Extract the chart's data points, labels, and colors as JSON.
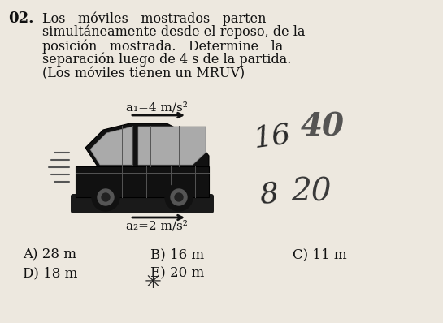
{
  "problem_number": "02.",
  "problem_text_lines": [
    "Los   móviles   mostrados   parten",
    "simultáneamente desde el reposo, de la",
    "posición   mostrada.   Determine   la",
    "separación luego de 4 s de la partida.",
    "(Los móviles tienen un MRUV)"
  ],
  "a1_label": "a₁=4 m/s²",
  "a2_label": "a₂=2 m/s²",
  "answers_row1": [
    "A) 28 m",
    "B) 16 m",
    "C) 11 m"
  ],
  "answers_row2": [
    "D) 18 m",
    "E) 20 m"
  ],
  "bg_color": "#ede8df",
  "text_color": "#111111",
  "arrow_color": "#111111",
  "speed_line_color": "#555555",
  "car_dark": "#111111",
  "car_mid": "#666666",
  "car_light": "#aaaaaa"
}
